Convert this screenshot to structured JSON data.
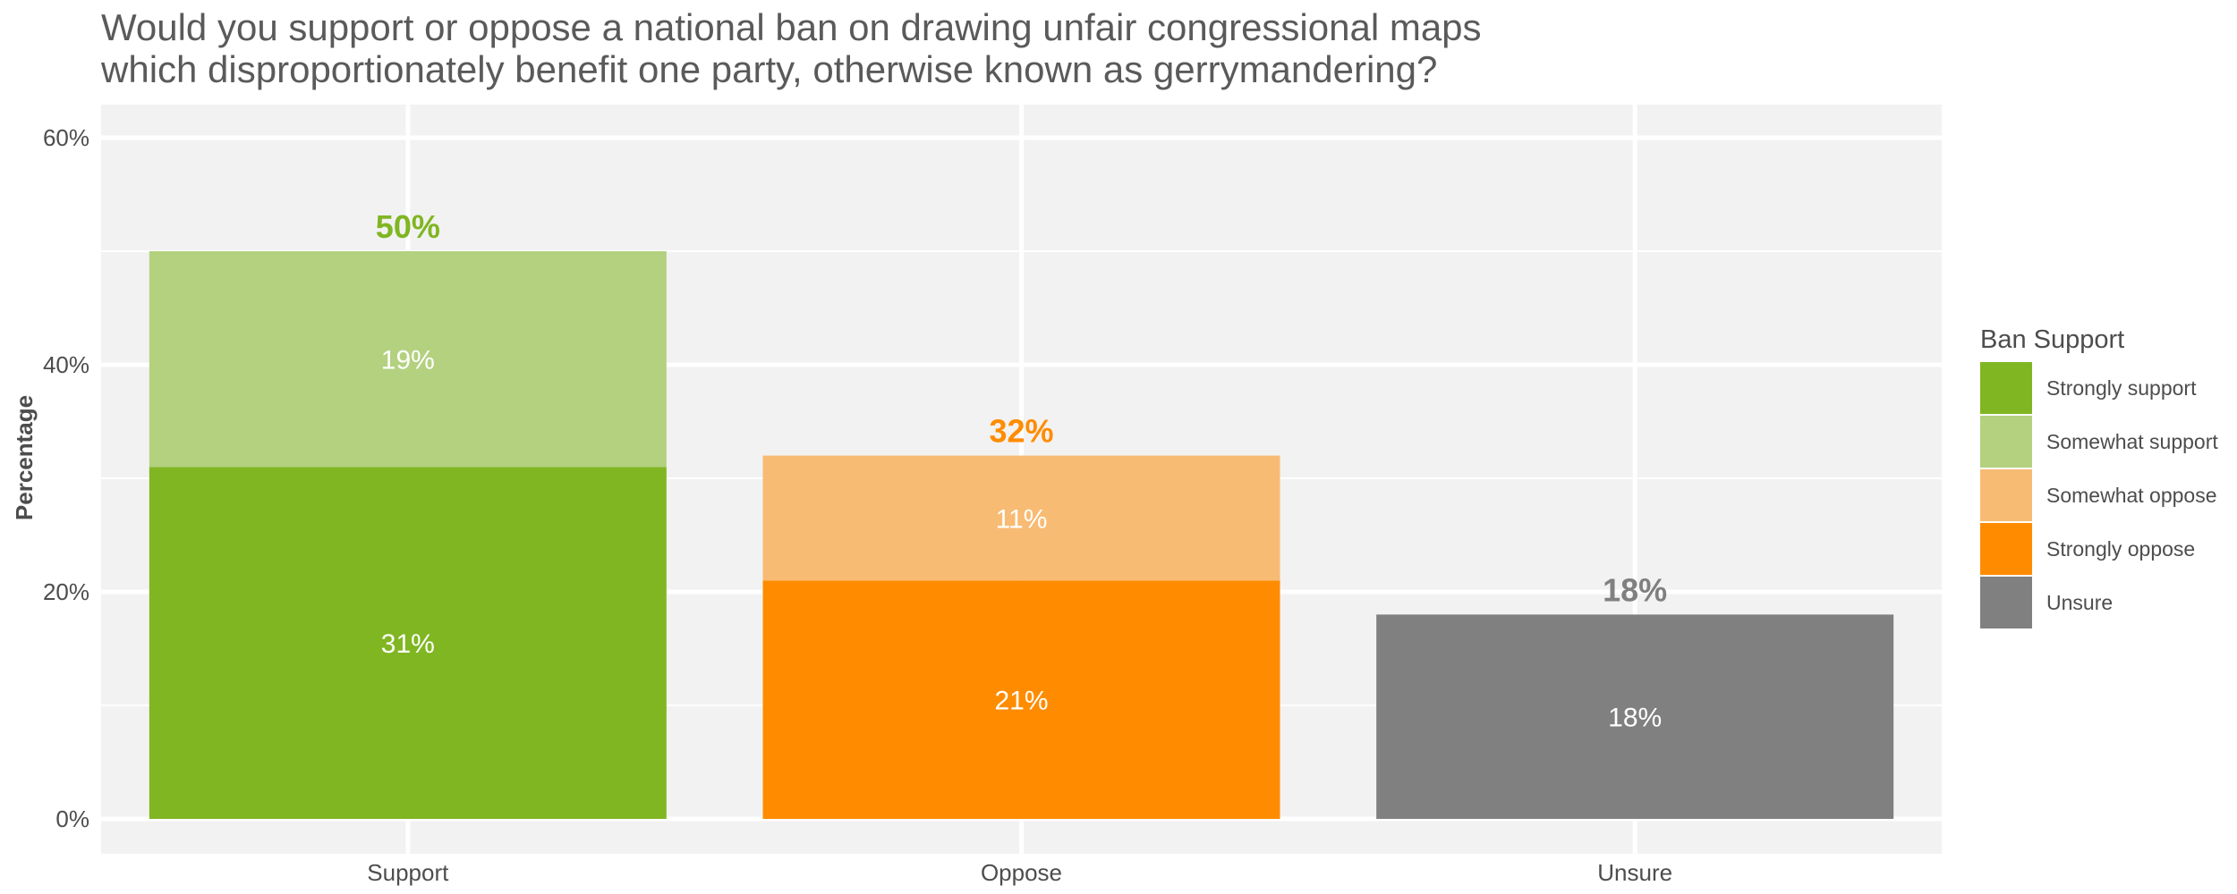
{
  "chart_data": {
    "type": "bar",
    "stacked": true,
    "title_lines": [
      "Would you support or oppose a national ban on drawing unfair congressional maps",
      "which disproportionately benefit one party, otherwise known as gerrymandering?"
    ],
    "xlabel": "",
    "ylabel": "Percentage",
    "ylim": [
      0,
      63
    ],
    "yticks": [
      0,
      20,
      40,
      60
    ],
    "ytick_labels": [
      "0%",
      "20%",
      "40%",
      "60%"
    ],
    "grid": true,
    "legend": {
      "title": "Ban Support",
      "position": "right",
      "entries": [
        {
          "label": "Strongly support",
          "color": "#80b622"
        },
        {
          "label": "Somewhat support",
          "color": "#b3d17f"
        },
        {
          "label": "Somewhat oppose",
          "color": "#f8bb73"
        },
        {
          "label": "Strongly oppose",
          "color": "#ff8c00"
        },
        {
          "label": "Unsure",
          "color": "#808080"
        }
      ]
    },
    "categories": [
      "Support",
      "Oppose",
      "Unsure"
    ],
    "bars": [
      {
        "category": "Support",
        "total": 50,
        "total_label": "50%",
        "total_color": "#80b622",
        "segments": [
          {
            "series": "Strongly support",
            "value": 31,
            "label": "31%",
            "color": "#80b622"
          },
          {
            "series": "Somewhat support",
            "value": 19,
            "label": "19%",
            "color": "#b3d17f"
          }
        ]
      },
      {
        "category": "Oppose",
        "total": 32,
        "total_label": "32%",
        "total_color": "#ff8c00",
        "segments": [
          {
            "series": "Strongly oppose",
            "value": 21,
            "label": "21%",
            "color": "#ff8c00"
          },
          {
            "series": "Somewhat oppose",
            "value": 11,
            "label": "11%",
            "color": "#f8bb73"
          }
        ]
      },
      {
        "category": "Unsure",
        "total": 18,
        "total_label": "18%",
        "total_color": "#808080",
        "segments": [
          {
            "series": "Unsure",
            "value": 18,
            "label": "18%",
            "color": "#808080"
          }
        ]
      }
    ]
  },
  "style": {
    "panel_background": "#f2f2f2",
    "grid_color": "#ffffff"
  }
}
